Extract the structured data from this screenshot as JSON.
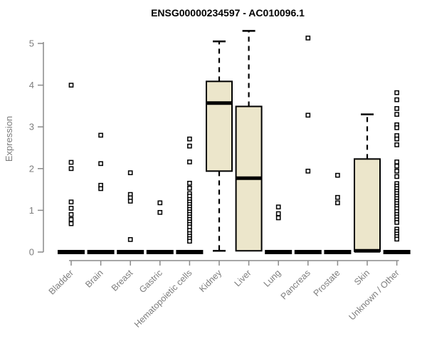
{
  "header": {
    "title": "ENSG00000234597 - AC010096.1"
  },
  "chart_data": {
    "type": "boxplot",
    "title": "ENSG00000234597 - AC010096.1",
    "xlabel": "",
    "ylabel": "Expression",
    "ylim": [
      0,
      5.35
    ],
    "yticks": [
      0,
      1,
      2,
      3,
      4,
      5
    ],
    "grid": false,
    "legend": "none",
    "colors": {
      "box_fill": "#ece6cb",
      "box_stroke": "#000000",
      "median": "#000000",
      "whisker": "#000000",
      "outlier_stroke": "#000000",
      "outlier_fill": "#ffffff",
      "axis": "#8a8a8a",
      "label": "#7d7d7d",
      "title": "#000000",
      "background": "#ffffff"
    },
    "categories": [
      "Bladder",
      "Brain",
      "Breast",
      "Gastric",
      "Hematopoietic cells",
      "Kidney",
      "Liver",
      "Lung",
      "Pancreas",
      "Prostate",
      "Skin",
      "Unknown / Other"
    ],
    "boxes": [
      {
        "category": "Bladder",
        "q1": 0,
        "median": 0,
        "q3": 0,
        "whisker_low": 0,
        "whisker_high": 0,
        "outliers": [
          4.0,
          2.15,
          2.0,
          1.2,
          1.05,
          0.9,
          0.78,
          0.68
        ]
      },
      {
        "category": "Brain",
        "q1": 0,
        "median": 0,
        "q3": 0,
        "whisker_low": 0,
        "whisker_high": 0,
        "outliers": [
          2.8,
          2.12,
          1.6,
          1.52
        ]
      },
      {
        "category": "Breast",
        "q1": 0,
        "median": 0,
        "q3": 0,
        "whisker_low": 0,
        "whisker_high": 0,
        "outliers": [
          1.9,
          1.38,
          1.3,
          1.22,
          0.3
        ]
      },
      {
        "category": "Gastric",
        "q1": 0,
        "median": 0,
        "q3": 0,
        "whisker_low": 0,
        "whisker_high": 0,
        "outliers": [
          1.18,
          0.95
        ]
      },
      {
        "category": "Hematopoietic cells",
        "q1": 0,
        "median": 0,
        "q3": 0,
        "whisker_low": 0,
        "whisker_high": 0,
        "outliers": [
          2.71,
          2.54,
          2.16,
          1.65,
          1.53,
          1.4,
          1.34,
          1.26,
          1.2,
          1.14,
          1.08,
          1.02,
          0.96,
          0.9,
          0.84,
          0.78,
          0.72,
          0.66,
          0.6,
          0.52,
          0.44,
          0.38,
          0.32,
          0.26
        ]
      },
      {
        "category": "Kidney",
        "q1": 1.94,
        "median": 3.57,
        "q3": 4.09,
        "whisker_low": 0.03,
        "whisker_high": 5.05,
        "outliers": []
      },
      {
        "category": "Liver",
        "q1": 0.03,
        "median": 1.77,
        "q3": 3.49,
        "whisker_low": 0.03,
        "whisker_high": 5.3,
        "outliers": []
      },
      {
        "category": "Lung",
        "q1": 0,
        "median": 0,
        "q3": 0,
        "whisker_low": 0,
        "whisker_high": 0,
        "outliers": [
          1.08,
          0.92,
          0.82
        ]
      },
      {
        "category": "Pancreas",
        "q1": 0,
        "median": 0,
        "q3": 0,
        "whisker_low": 0,
        "whisker_high": 0,
        "outliers": [
          5.13,
          3.28,
          1.94
        ]
      },
      {
        "category": "Prostate",
        "q1": 0,
        "median": 0,
        "q3": 0,
        "whisker_low": 0,
        "whisker_high": 0,
        "outliers": [
          1.84,
          1.31,
          1.18
        ]
      },
      {
        "category": "Skin",
        "q1": 0.02,
        "median": 0.03,
        "q3": 2.23,
        "whisker_low": 0.02,
        "whisker_high": 3.3,
        "outliers": []
      },
      {
        "category": "Unknown / Other",
        "q1": 0,
        "median": 0,
        "q3": 0,
        "whisker_low": 0,
        "whisker_high": 0,
        "outliers": [
          3.82,
          3.65,
          3.44,
          3.3,
          3.05,
          2.98,
          2.79,
          2.71,
          2.57,
          2.16,
          2.06,
          1.94,
          1.81,
          1.64,
          1.58,
          1.52,
          1.46,
          1.4,
          1.34,
          1.28,
          1.22,
          1.16,
          1.1,
          1.04,
          0.97,
          0.9,
          0.84,
          0.77,
          0.71,
          0.55,
          0.49,
          0.43,
          0.37,
          0.31
        ]
      }
    ]
  }
}
